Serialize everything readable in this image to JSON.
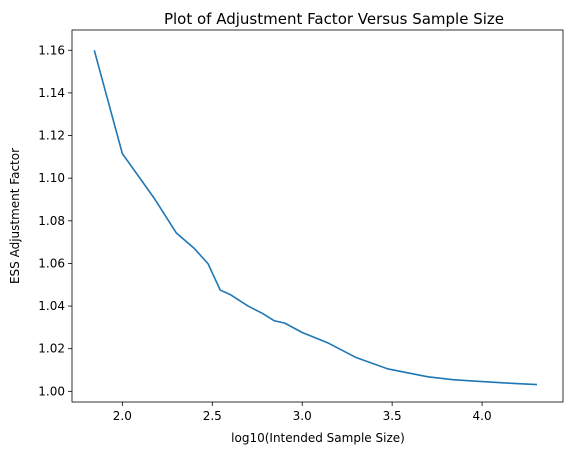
{
  "chart_data": {
    "type": "line",
    "title": "Plot of Adjustment Factor Versus Sample Size",
    "xlabel": "log10(Intended Sample Size)",
    "ylabel": "ESS Adjustment Factor",
    "xlim": [
      1.72,
      4.45
    ],
    "ylim": [
      0.995,
      1.1695
    ],
    "xticks": [
      2.0,
      2.5,
      3.0,
      3.5,
      4.0
    ],
    "xtick_labels": [
      "2.0",
      "2.5",
      "3.0",
      "3.5",
      "4.0"
    ],
    "yticks": [
      1.0,
      1.02,
      1.04,
      1.06,
      1.08,
      1.1,
      1.12,
      1.14,
      1.16
    ],
    "ytick_labels": [
      "1.00",
      "1.02",
      "1.04",
      "1.06",
      "1.08",
      "1.10",
      "1.12",
      "1.14",
      "1.16"
    ],
    "grid": false,
    "line_color": "#1f77b4",
    "series": [
      {
        "x": [
          1.845,
          2.0,
          2.176,
          2.301,
          2.398,
          2.477,
          2.544,
          2.602,
          2.699,
          2.778,
          2.845,
          2.903,
          3.0,
          3.146,
          3.301,
          3.477,
          3.699,
          3.845,
          4.0,
          4.176,
          4.301
        ],
        "y": [
          1.1596,
          1.1115,
          1.0907,
          1.0742,
          1.0672,
          1.0598,
          1.0475,
          1.0453,
          1.04,
          1.0366,
          1.0331,
          1.032,
          1.0276,
          1.0226,
          1.0158,
          1.0105,
          1.0068,
          1.0054,
          1.0046,
          1.0037,
          1.0032
        ]
      }
    ]
  }
}
